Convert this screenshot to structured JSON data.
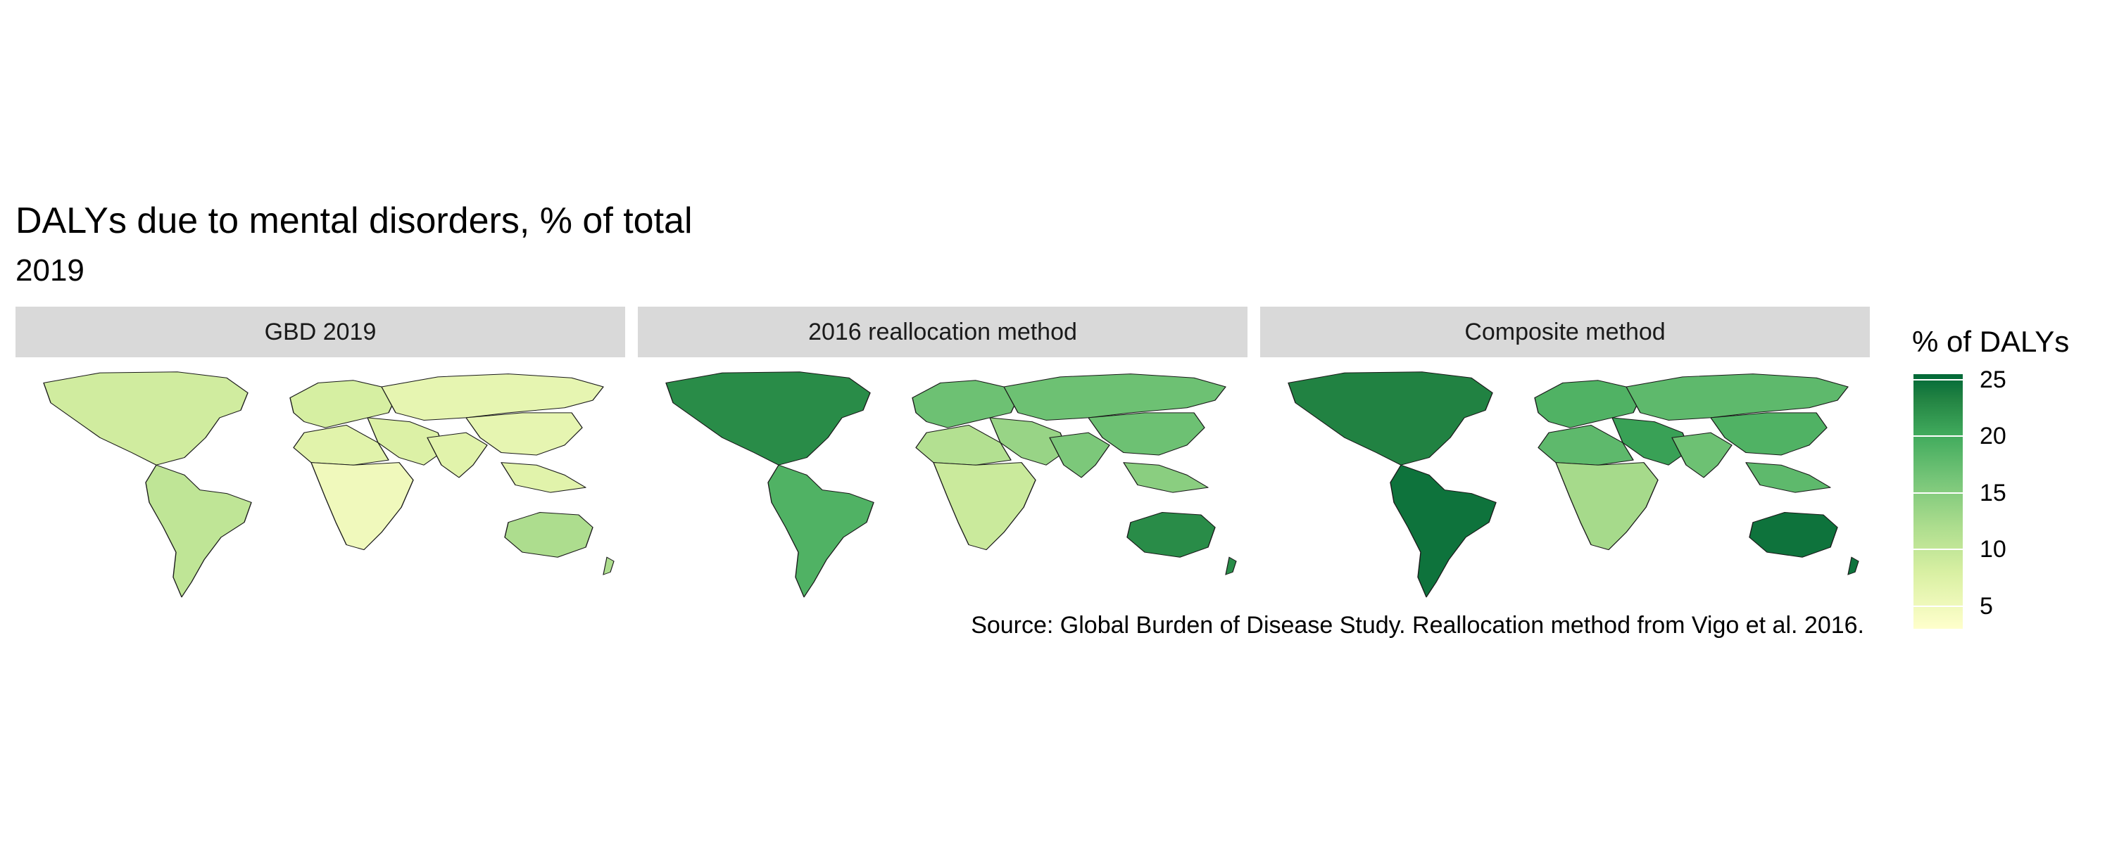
{
  "header": {
    "title": "DALYs due to mental disorders, % of total",
    "subtitle": "2019"
  },
  "panels": [
    {
      "label": "GBD 2019"
    },
    {
      "label": "2016 reallocation method"
    },
    {
      "label": "Composite method"
    }
  ],
  "caption": "Source: Global Burden of Disease Study. Reallocation method from Vigo et al. 2016.",
  "legend": {
    "title": "% of DALYs",
    "min": 3,
    "max": 25.5,
    "ticks": [
      "25",
      "20",
      "15",
      "10",
      "5"
    ],
    "tick_values": [
      25,
      20,
      15,
      10,
      5
    ]
  },
  "colors": {
    "scale_low": "#ffffcc",
    "scale_high": "#006837",
    "strip": "#d9d9d9"
  },
  "chart_data": {
    "type": "choropleth",
    "metric": "% of DALYs",
    "year": "2019",
    "facets": [
      {
        "name": "GBD 2019",
        "regions": {
          "north_america": 7.5,
          "latin_america": 9,
          "europe": 7,
          "russia_central_asia": 5.5,
          "middle_east": 6.5,
          "north_africa": 6,
          "subsaharan_africa": 4.5,
          "south_asia": 6,
          "east_asia": 5.5,
          "southeast_asia": 6,
          "oceania": 10.5
        }
      },
      {
        "name": "2016 reallocation method",
        "regions": {
          "north_america": 21,
          "latin_america": 17,
          "europe": 15,
          "russia_central_asia": 15,
          "middle_east": 12,
          "north_africa": 10,
          "subsaharan_africa": 8,
          "south_asia": 14,
          "east_asia": 15,
          "southeast_asia": 13,
          "oceania": 21
        }
      },
      {
        "name": "Composite method",
        "regions": {
          "north_america": 22,
          "latin_america": 24,
          "europe": 17,
          "russia_central_asia": 16,
          "middle_east": 19,
          "north_africa": 16,
          "subsaharan_africa": 11,
          "south_asia": 15,
          "east_asia": 17,
          "southeast_asia": 16,
          "oceania": 24
        }
      }
    ]
  }
}
